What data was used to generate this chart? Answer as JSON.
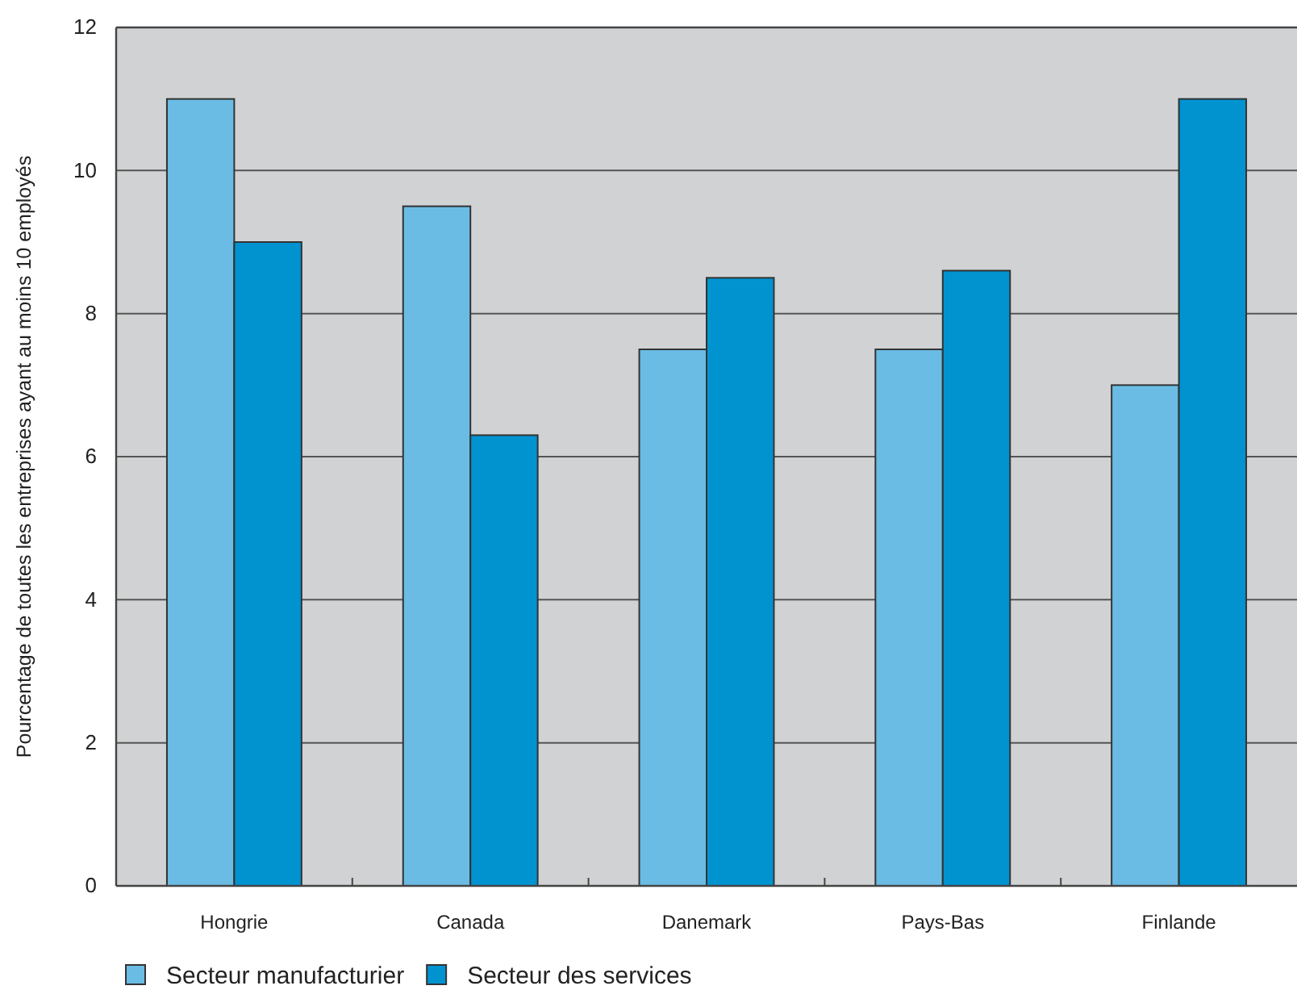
{
  "chart_data": {
    "type": "bar",
    "ylabel": "Pourcentage de toutes les entreprises ayant au moins 10 employés",
    "categories": [
      "Hongrie",
      "Canada",
      "Danemark",
      "Pays-Bas",
      "Finlande"
    ],
    "series": [
      {
        "name": "Secteur manufacturier",
        "color": "#6bbce4",
        "values": [
          11.0,
          9.5,
          7.5,
          7.5,
          7.0
        ]
      },
      {
        "name": "Secteur des services",
        "color": "#0093d0",
        "values": [
          9.0,
          6.3,
          8.5,
          8.6,
          11.0
        ]
      }
    ],
    "ylim": [
      0,
      12
    ],
    "yticks": [
      0,
      2,
      4,
      6,
      8,
      10,
      12
    ],
    "grid": "y",
    "legend": "bottom"
  }
}
